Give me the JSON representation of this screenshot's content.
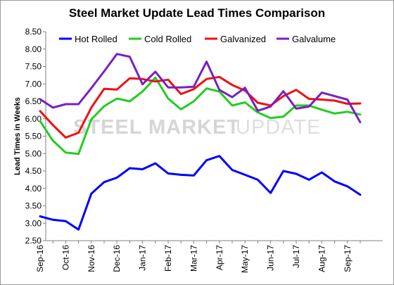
{
  "chart_data": {
    "type": "line",
    "title": "Steel Market Update Lead Times Comparison",
    "ylabel": "Lead Times in Weeks",
    "xlabel": "",
    "ylim": [
      2.5,
      8.5
    ],
    "yticks": [
      "2.50",
      "3.00",
      "3.50",
      "4.00",
      "4.50",
      "5.00",
      "5.50",
      "6.00",
      "6.50",
      "7.00",
      "7.50",
      "8.00",
      "8.50"
    ],
    "xtick_labels": [
      "Sep-16",
      "Oct-16",
      "Nov-16",
      "Dec-16",
      "Jan-17",
      "Feb-17",
      "Mar-17",
      "Apr-17",
      "May-17",
      "Jun-17",
      "Jul-17",
      "Aug-17",
      "Sep-17"
    ],
    "grid": false,
    "legend_position": "top",
    "watermark": {
      "bold": "STEEL MARKET",
      "light": "UPDATE"
    },
    "series": [
      {
        "name": "Hot Rolled",
        "color": "#0000ff",
        "values": [
          3.2,
          3.1,
          3.06,
          2.82,
          3.85,
          4.18,
          4.31,
          4.58,
          4.55,
          4.72,
          4.43,
          4.39,
          4.37,
          4.81,
          4.93,
          4.53,
          4.39,
          4.25,
          3.87,
          4.5,
          4.42,
          4.25,
          4.46,
          4.2,
          4.06,
          3.82
        ]
      },
      {
        "name": "Cold Rolled",
        "color": "#22cc22",
        "values": [
          5.93,
          5.37,
          5.03,
          4.99,
          5.98,
          6.36,
          6.58,
          6.5,
          6.78,
          7.18,
          6.58,
          6.27,
          6.5,
          6.87,
          6.78,
          6.38,
          6.47,
          6.18,
          6.02,
          6.06,
          6.38,
          6.38,
          6.26,
          6.15,
          6.2,
          6.12
        ]
      },
      {
        "name": "Galvanized",
        "color": "#ee1111",
        "values": [
          6.22,
          5.82,
          5.46,
          5.6,
          6.32,
          6.86,
          6.84,
          7.16,
          7.14,
          7.07,
          7.12,
          6.71,
          6.85,
          7.14,
          7.2,
          6.97,
          6.81,
          6.46,
          6.38,
          6.65,
          6.83,
          6.57,
          6.55,
          6.52,
          6.43,
          6.44
        ]
      },
      {
        "name": "Galvalume",
        "color": "#7a1fc0",
        "values": [
          6.56,
          6.32,
          6.42,
          6.42,
          6.88,
          7.36,
          7.86,
          7.78,
          6.99,
          7.35,
          6.9,
          6.9,
          6.92,
          7.64,
          6.83,
          6.62,
          6.89,
          6.23,
          6.35,
          6.79,
          6.29,
          6.35,
          6.75,
          6.65,
          6.55,
          5.9
        ]
      }
    ]
  }
}
